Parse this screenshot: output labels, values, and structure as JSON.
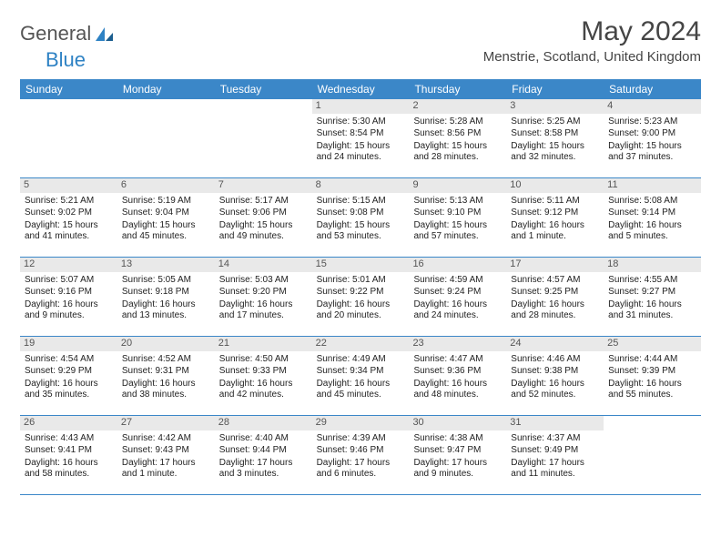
{
  "brand": {
    "word1": "General",
    "word2": "Blue"
  },
  "title": "May 2024",
  "location": "Menstrie, Scotland, United Kingdom",
  "colors": {
    "header_bg": "#3b87c8",
    "header_text": "#ffffff",
    "daynum_bg": "#e9e9e9",
    "border": "#3b87c8",
    "brand_blue": "#2e82c4"
  },
  "day_headers": [
    "Sunday",
    "Monday",
    "Tuesday",
    "Wednesday",
    "Thursday",
    "Friday",
    "Saturday"
  ],
  "weeks": [
    [
      {
        "n": "",
        "sr": "",
        "ss": "",
        "dl": ""
      },
      {
        "n": "",
        "sr": "",
        "ss": "",
        "dl": ""
      },
      {
        "n": "",
        "sr": "",
        "ss": "",
        "dl": ""
      },
      {
        "n": "1",
        "sr": "Sunrise: 5:30 AM",
        "ss": "Sunset: 8:54 PM",
        "dl": "Daylight: 15 hours and 24 minutes."
      },
      {
        "n": "2",
        "sr": "Sunrise: 5:28 AM",
        "ss": "Sunset: 8:56 PM",
        "dl": "Daylight: 15 hours and 28 minutes."
      },
      {
        "n": "3",
        "sr": "Sunrise: 5:25 AM",
        "ss": "Sunset: 8:58 PM",
        "dl": "Daylight: 15 hours and 32 minutes."
      },
      {
        "n": "4",
        "sr": "Sunrise: 5:23 AM",
        "ss": "Sunset: 9:00 PM",
        "dl": "Daylight: 15 hours and 37 minutes."
      }
    ],
    [
      {
        "n": "5",
        "sr": "Sunrise: 5:21 AM",
        "ss": "Sunset: 9:02 PM",
        "dl": "Daylight: 15 hours and 41 minutes."
      },
      {
        "n": "6",
        "sr": "Sunrise: 5:19 AM",
        "ss": "Sunset: 9:04 PM",
        "dl": "Daylight: 15 hours and 45 minutes."
      },
      {
        "n": "7",
        "sr": "Sunrise: 5:17 AM",
        "ss": "Sunset: 9:06 PM",
        "dl": "Daylight: 15 hours and 49 minutes."
      },
      {
        "n": "8",
        "sr": "Sunrise: 5:15 AM",
        "ss": "Sunset: 9:08 PM",
        "dl": "Daylight: 15 hours and 53 minutes."
      },
      {
        "n": "9",
        "sr": "Sunrise: 5:13 AM",
        "ss": "Sunset: 9:10 PM",
        "dl": "Daylight: 15 hours and 57 minutes."
      },
      {
        "n": "10",
        "sr": "Sunrise: 5:11 AM",
        "ss": "Sunset: 9:12 PM",
        "dl": "Daylight: 16 hours and 1 minute."
      },
      {
        "n": "11",
        "sr": "Sunrise: 5:08 AM",
        "ss": "Sunset: 9:14 PM",
        "dl": "Daylight: 16 hours and 5 minutes."
      }
    ],
    [
      {
        "n": "12",
        "sr": "Sunrise: 5:07 AM",
        "ss": "Sunset: 9:16 PM",
        "dl": "Daylight: 16 hours and 9 minutes."
      },
      {
        "n": "13",
        "sr": "Sunrise: 5:05 AM",
        "ss": "Sunset: 9:18 PM",
        "dl": "Daylight: 16 hours and 13 minutes."
      },
      {
        "n": "14",
        "sr": "Sunrise: 5:03 AM",
        "ss": "Sunset: 9:20 PM",
        "dl": "Daylight: 16 hours and 17 minutes."
      },
      {
        "n": "15",
        "sr": "Sunrise: 5:01 AM",
        "ss": "Sunset: 9:22 PM",
        "dl": "Daylight: 16 hours and 20 minutes."
      },
      {
        "n": "16",
        "sr": "Sunrise: 4:59 AM",
        "ss": "Sunset: 9:24 PM",
        "dl": "Daylight: 16 hours and 24 minutes."
      },
      {
        "n": "17",
        "sr": "Sunrise: 4:57 AM",
        "ss": "Sunset: 9:25 PM",
        "dl": "Daylight: 16 hours and 28 minutes."
      },
      {
        "n": "18",
        "sr": "Sunrise: 4:55 AM",
        "ss": "Sunset: 9:27 PM",
        "dl": "Daylight: 16 hours and 31 minutes."
      }
    ],
    [
      {
        "n": "19",
        "sr": "Sunrise: 4:54 AM",
        "ss": "Sunset: 9:29 PM",
        "dl": "Daylight: 16 hours and 35 minutes."
      },
      {
        "n": "20",
        "sr": "Sunrise: 4:52 AM",
        "ss": "Sunset: 9:31 PM",
        "dl": "Daylight: 16 hours and 38 minutes."
      },
      {
        "n": "21",
        "sr": "Sunrise: 4:50 AM",
        "ss": "Sunset: 9:33 PM",
        "dl": "Daylight: 16 hours and 42 minutes."
      },
      {
        "n": "22",
        "sr": "Sunrise: 4:49 AM",
        "ss": "Sunset: 9:34 PM",
        "dl": "Daylight: 16 hours and 45 minutes."
      },
      {
        "n": "23",
        "sr": "Sunrise: 4:47 AM",
        "ss": "Sunset: 9:36 PM",
        "dl": "Daylight: 16 hours and 48 minutes."
      },
      {
        "n": "24",
        "sr": "Sunrise: 4:46 AM",
        "ss": "Sunset: 9:38 PM",
        "dl": "Daylight: 16 hours and 52 minutes."
      },
      {
        "n": "25",
        "sr": "Sunrise: 4:44 AM",
        "ss": "Sunset: 9:39 PM",
        "dl": "Daylight: 16 hours and 55 minutes."
      }
    ],
    [
      {
        "n": "26",
        "sr": "Sunrise: 4:43 AM",
        "ss": "Sunset: 9:41 PM",
        "dl": "Daylight: 16 hours and 58 minutes."
      },
      {
        "n": "27",
        "sr": "Sunrise: 4:42 AM",
        "ss": "Sunset: 9:43 PM",
        "dl": "Daylight: 17 hours and 1 minute."
      },
      {
        "n": "28",
        "sr": "Sunrise: 4:40 AM",
        "ss": "Sunset: 9:44 PM",
        "dl": "Daylight: 17 hours and 3 minutes."
      },
      {
        "n": "29",
        "sr": "Sunrise: 4:39 AM",
        "ss": "Sunset: 9:46 PM",
        "dl": "Daylight: 17 hours and 6 minutes."
      },
      {
        "n": "30",
        "sr": "Sunrise: 4:38 AM",
        "ss": "Sunset: 9:47 PM",
        "dl": "Daylight: 17 hours and 9 minutes."
      },
      {
        "n": "31",
        "sr": "Sunrise: 4:37 AM",
        "ss": "Sunset: 9:49 PM",
        "dl": "Daylight: 17 hours and 11 minutes."
      },
      {
        "n": "",
        "sr": "",
        "ss": "",
        "dl": ""
      }
    ]
  ]
}
